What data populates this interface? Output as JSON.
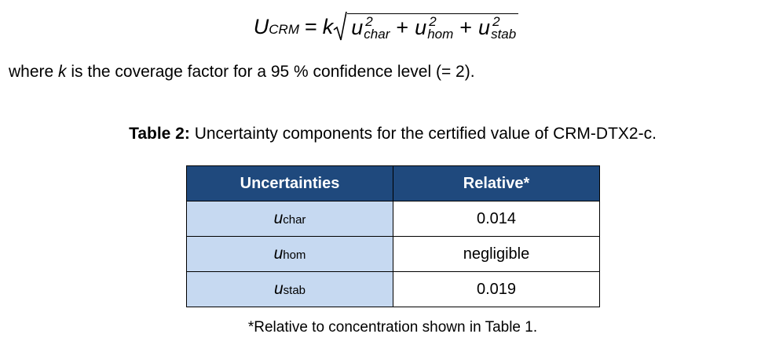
{
  "formula": {
    "lhs": "U",
    "lhs_sub": "CRM",
    "equals": "=",
    "k": "k",
    "plus": "+",
    "terms": [
      {
        "base": "u",
        "sup": "2",
        "sub": "char"
      },
      {
        "base": "u",
        "sup": "2",
        "sub": "hom"
      },
      {
        "base": "u",
        "sup": "2",
        "sub": "stab"
      }
    ]
  },
  "paragraph": [
    "where ",
    "k",
    " is the coverage factor for a 95 % confidence level (= 2)."
  ],
  "caption": {
    "label": "Table 2:",
    "text": " Uncertainty components for the certified value of CRM-DTX2-c."
  },
  "table": {
    "headers": [
      "Uncertainties",
      "Relative*"
    ],
    "rows": [
      [
        {
          "base": "u",
          "sub": "char"
        },
        "0.014"
      ],
      [
        {
          "base": "u",
          "sub": "hom"
        },
        "negligible"
      ],
      [
        {
          "base": "u",
          "sub": "stab"
        },
        "0.019"
      ]
    ]
  },
  "footnote": "*Relative to concentration shown in Table 1."
}
